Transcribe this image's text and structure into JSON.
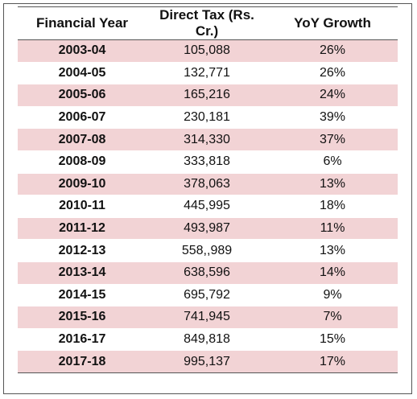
{
  "table": {
    "headers": [
      "Financial Year",
      "Direct Tax (Rs. Cr.)",
      "YoY Growth"
    ],
    "rows": [
      [
        "2003-04",
        "105,088",
        "26%"
      ],
      [
        "2004-05",
        "132,771",
        "26%"
      ],
      [
        "2005-06",
        "165,216",
        "24%"
      ],
      [
        "2006-07",
        "230,181",
        "39%"
      ],
      [
        "2007-08",
        "314,330",
        "37%"
      ],
      [
        "2008-09",
        "333,818",
        "6%"
      ],
      [
        "2009-10",
        "378,063",
        "13%"
      ],
      [
        "2010-11",
        "445,995",
        "18%"
      ],
      [
        "2011-12",
        "493,987",
        "11%"
      ],
      [
        "2012-13",
        "558,,989",
        "13%"
      ],
      [
        "2013-14",
        "638,596",
        "14%"
      ],
      [
        "2014-15",
        "695,792",
        "9%"
      ],
      [
        "2015-16",
        "741,945",
        "7%"
      ],
      [
        "2016-17",
        "849,818",
        "15%"
      ],
      [
        "2017-18",
        "995,137",
        "17%"
      ]
    ]
  },
  "colors": {
    "shaded_row": "#f2d3d5",
    "plain_row": "#ffffff",
    "rule": "#555555"
  }
}
